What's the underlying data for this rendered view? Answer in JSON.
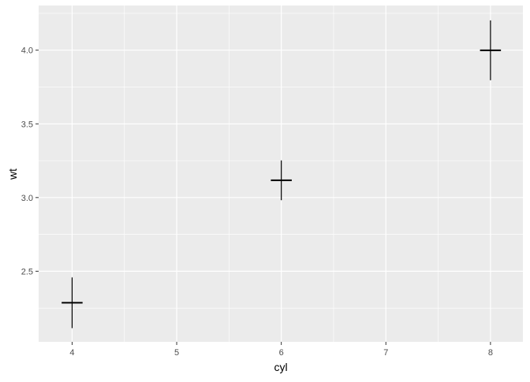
{
  "chart_data": {
    "type": "scatter",
    "geom": "crossbar-errorbar (mean ± se)",
    "xlabel": "cyl",
    "ylabel": "wt",
    "xlim": [
      3.68,
      8.31
    ],
    "ylim": [
      2.021,
      4.303
    ],
    "x_ticks": [
      4,
      5,
      6,
      7,
      8
    ],
    "x_tick_labels": [
      "4",
      "5",
      "6",
      "7",
      "8"
    ],
    "y_ticks": [
      2.5,
      3.0,
      3.5,
      4.0
    ],
    "y_tick_labels": [
      "2.5",
      "3.0",
      "3.5",
      "4.0"
    ],
    "grid": true,
    "panel_background": "#EBEBEB",
    "grid_color": "#FFFFFF",
    "tick_label_color": "#4D4D4D",
    "mark_color": "#000000",
    "points": [
      {
        "x": 4,
        "y": 2.286,
        "ymin": 2.114,
        "ymax": 2.458
      },
      {
        "x": 6,
        "y": 3.117,
        "ymin": 2.982,
        "ymax": 3.252
      },
      {
        "x": 8,
        "y": 3.999,
        "ymin": 3.796,
        "ymax": 4.202
      }
    ],
    "bar_halfwidth": 0.1
  }
}
